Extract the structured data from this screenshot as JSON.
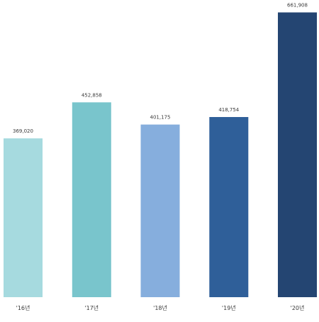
{
  "chart_data": {
    "type": "bar",
    "categories": [
      "'16년",
      "'17년",
      "'18년",
      "'19년",
      "'20년"
    ],
    "values": [
      369020,
      452858,
      401175,
      418754,
      661908
    ],
    "value_labels": [
      "369,020",
      "452,858",
      "401,175",
      "418,754",
      "661,908"
    ],
    "colors": [
      "#a6dadf",
      "#79c5cc",
      "#86aedd",
      "#2f5f99",
      "#244572"
    ],
    "ylim": [
      0,
      680000
    ],
    "grid": false,
    "legend": "none"
  }
}
